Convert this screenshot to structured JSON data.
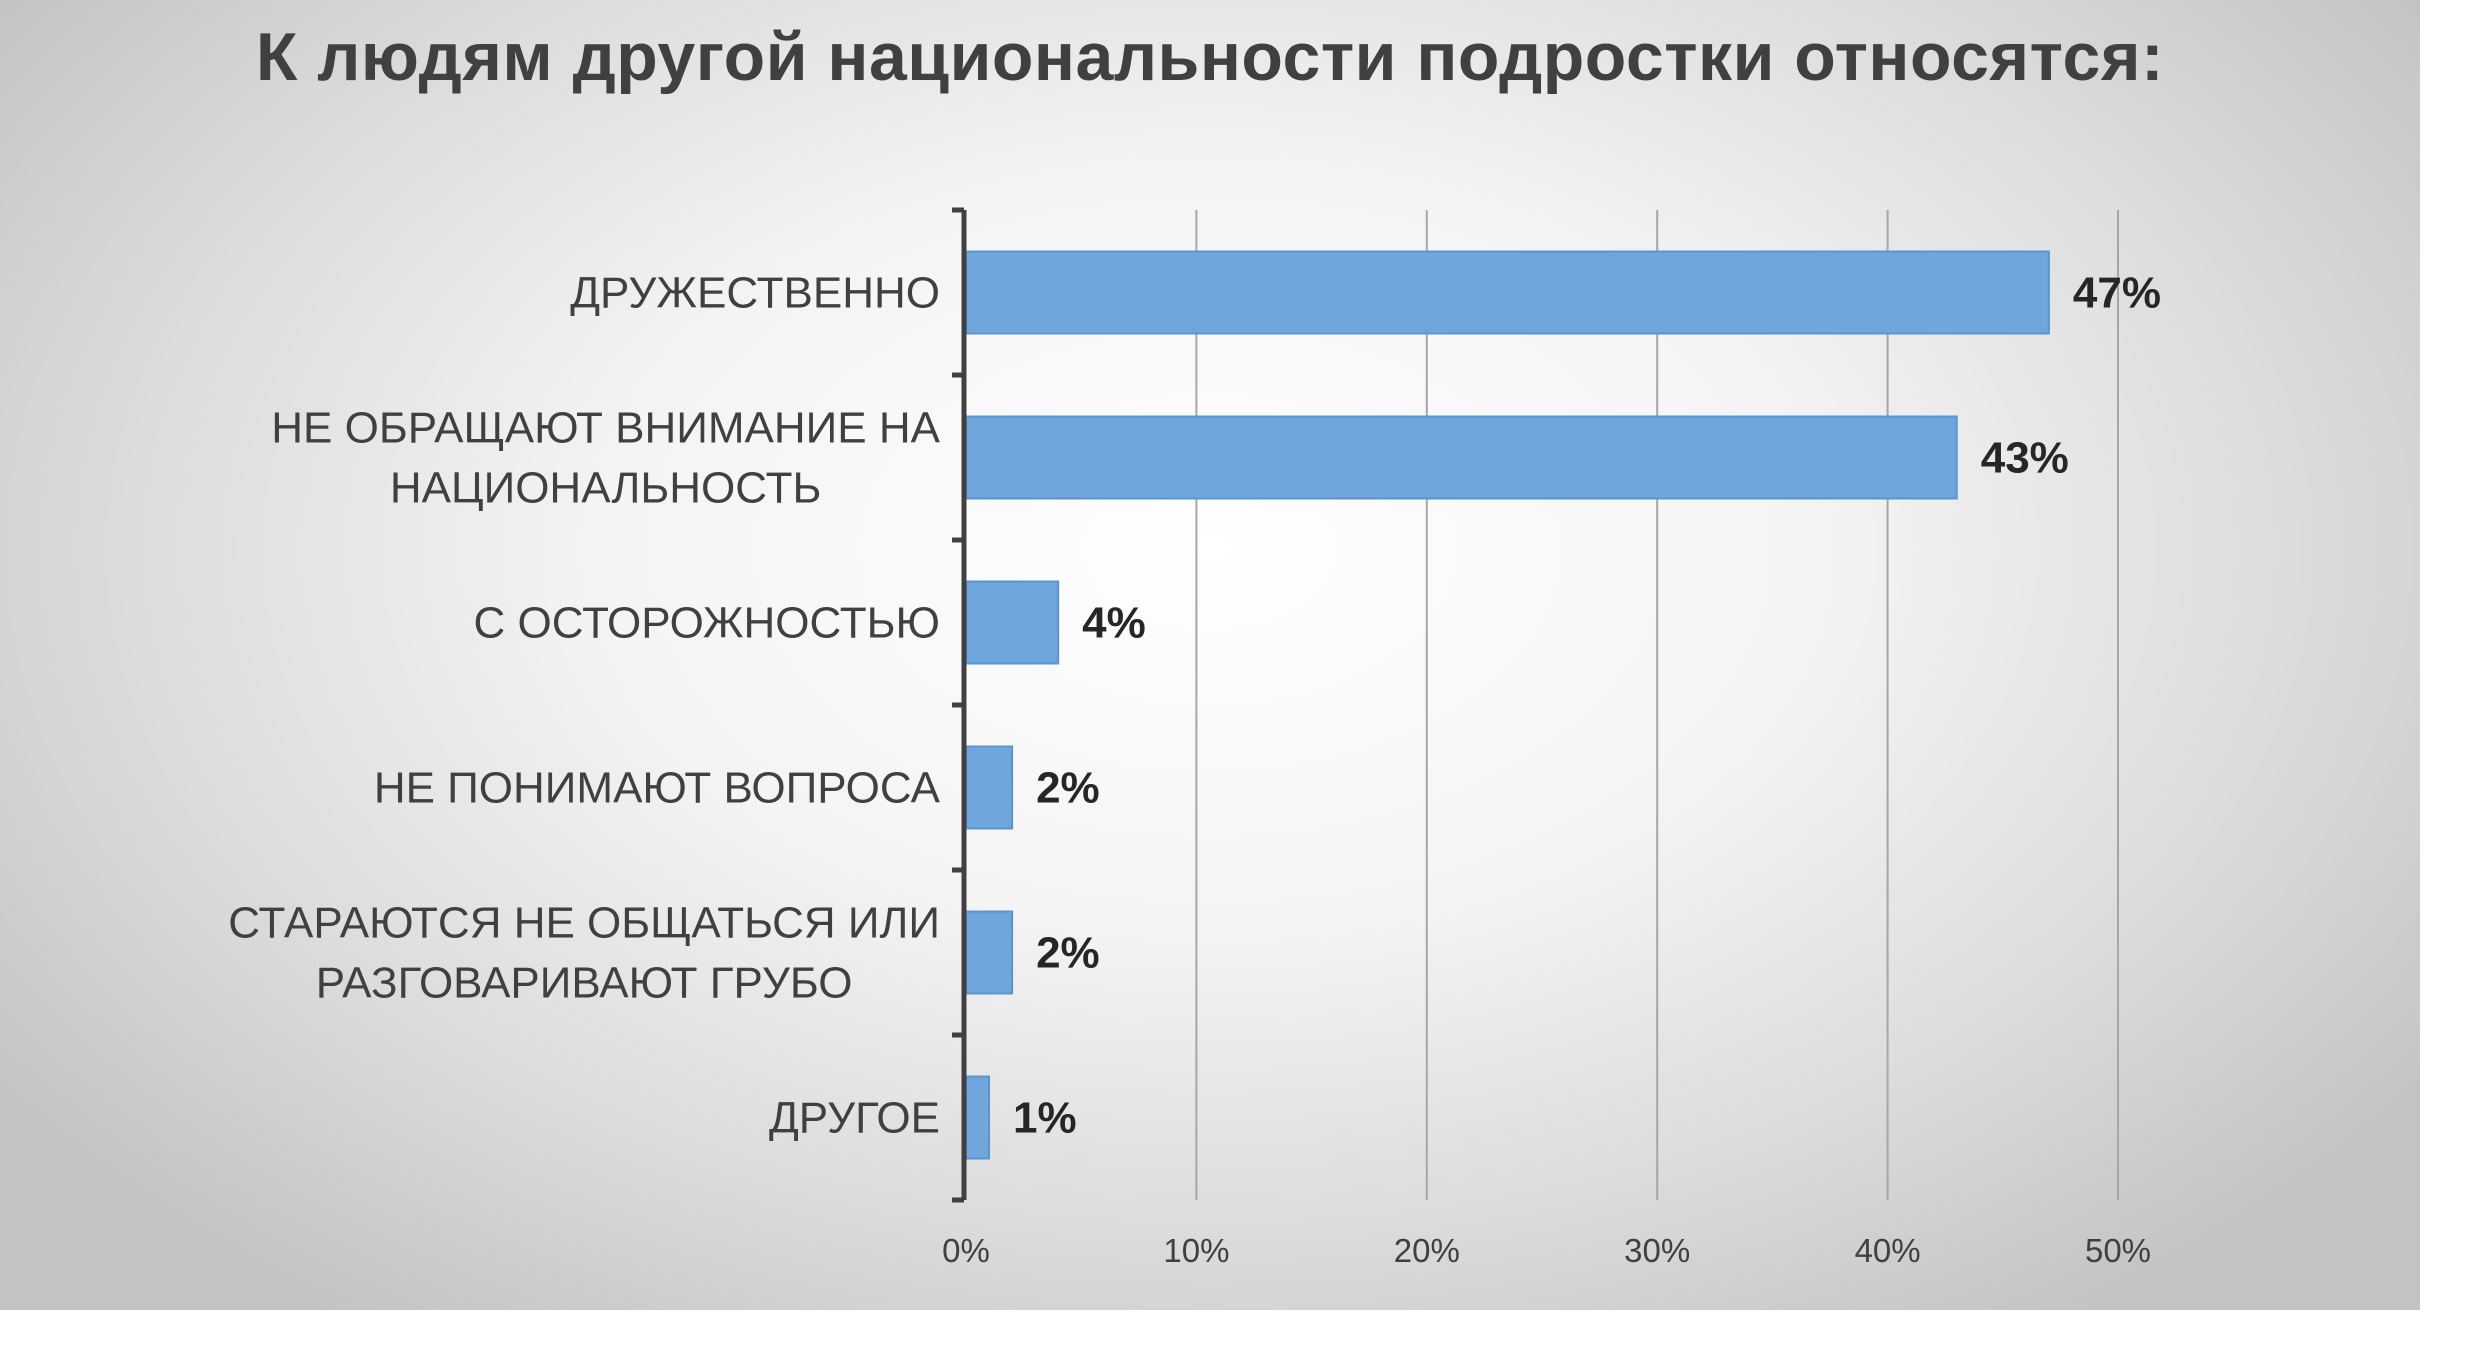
{
  "chart_data": {
    "type": "bar",
    "orientation": "horizontal",
    "title": "К людям другой национальности подростки относятся:",
    "categories": [
      [
        "ДРУЖЕСТВЕННО"
      ],
      [
        "НЕ ОБРАЩАЮТ ВНИМАНИЕ НА",
        "НАЦИОНАЛЬНОСТЬ"
      ],
      [
        "С ОСТОРОЖНОСТЬЮ"
      ],
      [
        "НЕ ПОНИМАЮТ ВОПРОСА"
      ],
      [
        "СТАРАЮТСЯ НЕ ОБЩАТЬСЯ ИЛИ",
        "РАЗГОВАРИВАЮТ ГРУБО"
      ],
      [
        "ДРУГОЕ"
      ]
    ],
    "values": [
      47,
      43,
      4,
      2,
      2,
      1
    ],
    "data_labels": [
      "47%",
      "43%",
      "4%",
      "2%",
      "2%",
      "1%"
    ],
    "xlim": [
      0,
      50
    ],
    "x_ticks": [
      0,
      10,
      20,
      30,
      40,
      50
    ],
    "x_tick_labels": [
      "0%",
      "10%",
      "20%",
      "30%",
      "40%",
      "50%"
    ],
    "xlabel": "",
    "ylabel": "",
    "grid": "vertical",
    "legend": "none",
    "colors": {
      "bar": "#6fa6db",
      "bar_edge": "#5b95cf",
      "gridline": "#a6a6a6",
      "axis": "#404040",
      "text": "#404040"
    }
  }
}
